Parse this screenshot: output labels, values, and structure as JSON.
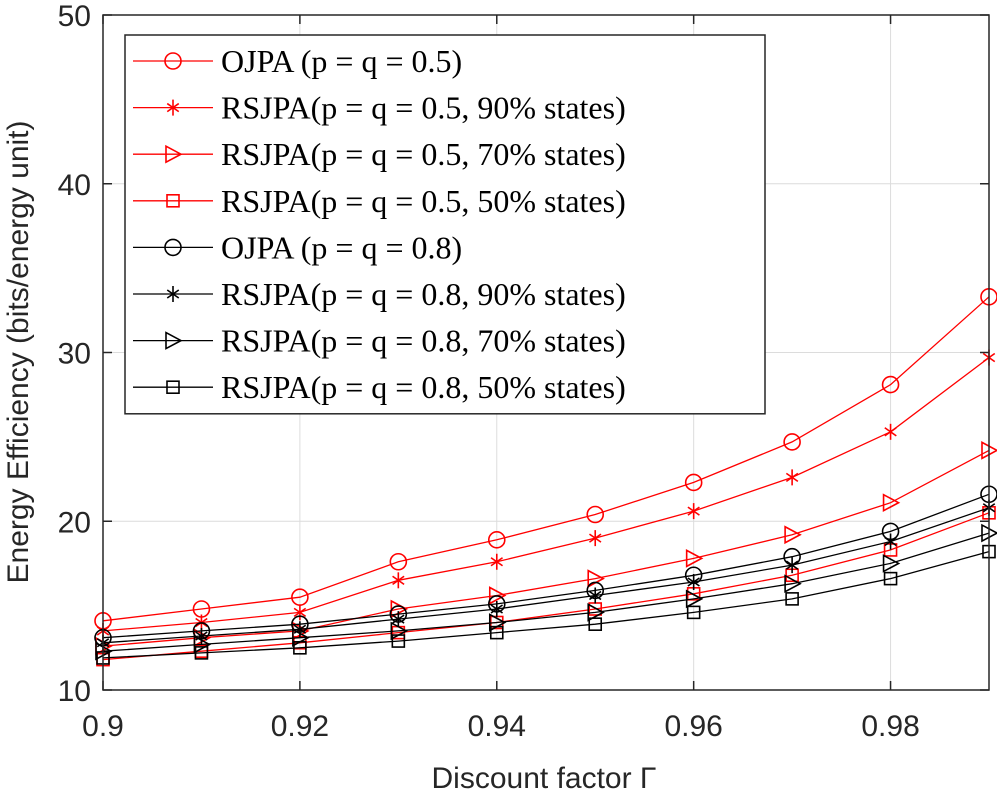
{
  "chart_data": {
    "type": "line",
    "title": "",
    "xlabel": "Discount factor Γ",
    "ylabel": "Energy Efficiency (bits/energy unit)",
    "xlim": [
      0.9,
      0.99
    ],
    "ylim": [
      10,
      50
    ],
    "xticks": [
      0.9,
      0.92,
      0.94,
      0.96,
      0.98
    ],
    "xtick_labels": [
      "0.9",
      "0.92",
      "0.94",
      "0.96",
      "0.98"
    ],
    "yticks": [
      10,
      20,
      30,
      40,
      50
    ],
    "ytick_labels": [
      "10",
      "20",
      "30",
      "40",
      "50"
    ],
    "grid": true,
    "legend_position": "top-left",
    "x": [
      0.9,
      0.91,
      0.92,
      0.93,
      0.94,
      0.95,
      0.96,
      0.97,
      0.98,
      0.99
    ],
    "series": [
      {
        "name": "OJPA  (p = q = 0.5)",
        "color": "#ff0000",
        "marker": "circle",
        "values": [
          14.1,
          14.8,
          15.5,
          17.6,
          18.9,
          20.4,
          22.3,
          24.7,
          28.1,
          33.3
        ]
      },
      {
        "name": "RSJPA(p = q = 0.5, 90% states)",
        "color": "#ff0000",
        "marker": "asterisk",
        "values": [
          13.5,
          14.0,
          14.6,
          16.5,
          17.6,
          19.0,
          20.6,
          22.6,
          25.3,
          29.7
        ]
      },
      {
        "name": "RSJPA(p = q = 0.5, 70% states)",
        "color": "#ff0000",
        "marker": "triangle-right",
        "values": [
          12.6,
          13.1,
          13.5,
          14.8,
          15.6,
          16.6,
          17.8,
          19.2,
          21.1,
          24.2
        ]
      },
      {
        "name": "RSJPA(p = q = 0.5, 50% states)",
        "color": "#ff0000",
        "marker": "square",
        "values": [
          11.8,
          12.3,
          12.8,
          13.4,
          14.0,
          14.8,
          15.7,
          16.8,
          18.3,
          20.5
        ]
      },
      {
        "name": "OJPA  (p = q = 0.8)",
        "color": "#000000",
        "marker": "circle",
        "values": [
          13.1,
          13.5,
          13.9,
          14.5,
          15.1,
          15.9,
          16.8,
          17.9,
          19.4,
          21.6
        ]
      },
      {
        "name": "RSJPA(p = q = 0.8, 90% states)",
        "color": "#000000",
        "marker": "asterisk",
        "values": [
          12.8,
          13.2,
          13.6,
          14.2,
          14.8,
          15.6,
          16.4,
          17.4,
          18.8,
          20.8
        ]
      },
      {
        "name": "RSJPA(p = q = 0.8, 70% states)",
        "color": "#000000",
        "marker": "triangle-right",
        "values": [
          12.3,
          12.7,
          13.1,
          13.5,
          14.0,
          14.6,
          15.4,
          16.3,
          17.5,
          19.3
        ]
      },
      {
        "name": "RSJPA(p = q = 0.8, 50% states)",
        "color": "#000000",
        "marker": "square",
        "values": [
          11.9,
          12.2,
          12.5,
          12.9,
          13.4,
          13.9,
          14.6,
          15.4,
          16.6,
          18.2
        ]
      }
    ]
  }
}
